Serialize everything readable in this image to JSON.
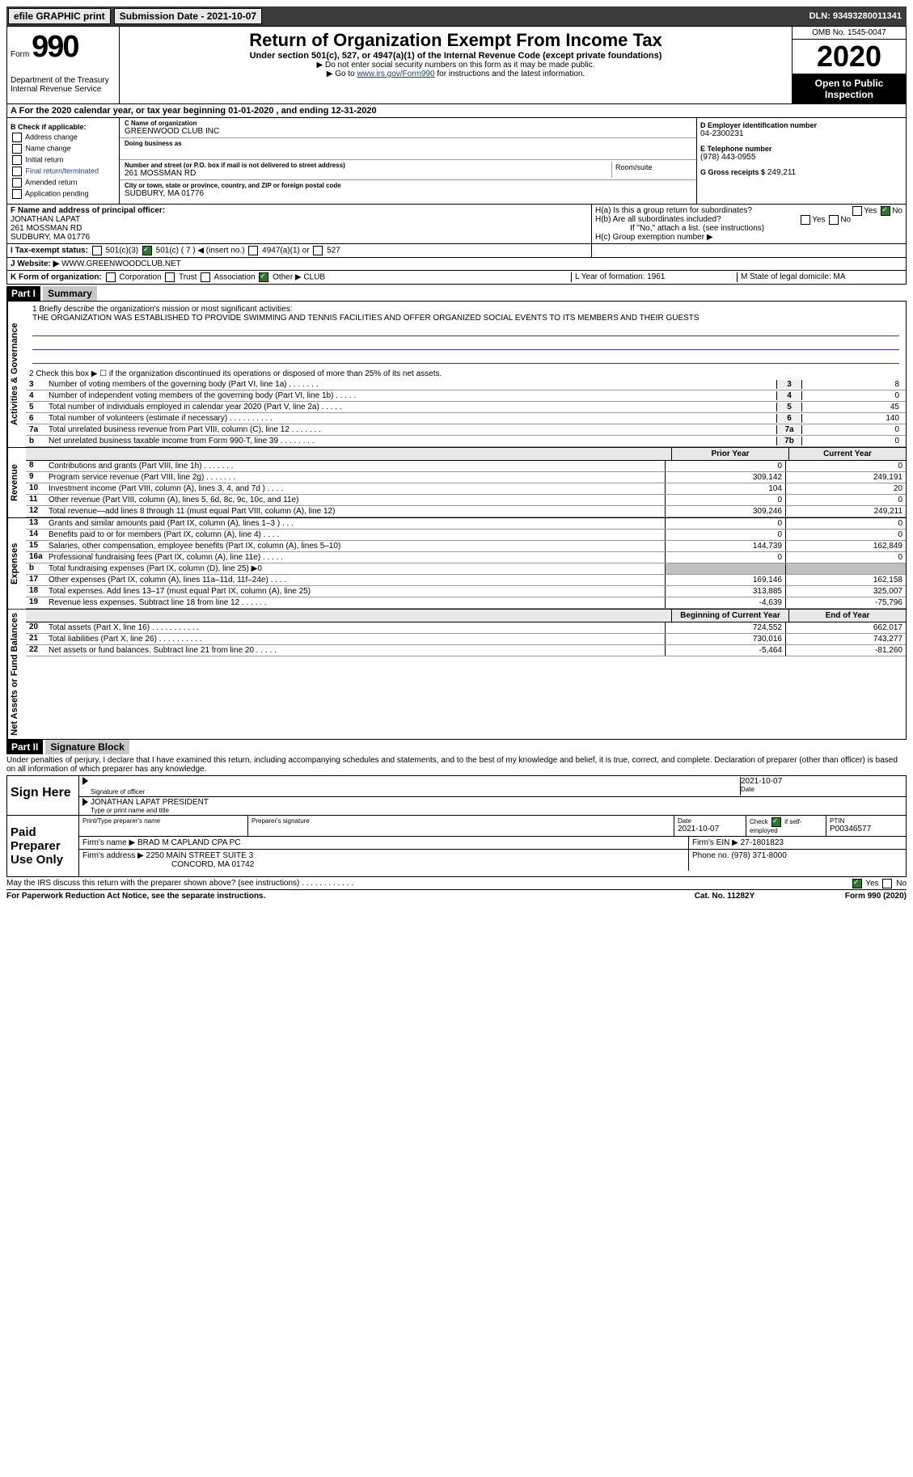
{
  "topbar": {
    "efile_label": "efile GRAPHIC print",
    "submission_label": "Submission Date - 2021-10-07",
    "dln": "DLN: 93493280011341"
  },
  "header": {
    "form_word": "Form",
    "form_number": "990",
    "dept1": "Department of the Treasury",
    "dept2": "Internal Revenue Service",
    "title": "Return of Organization Exempt From Income Tax",
    "sub": "Under section 501(c), 527, or 4947(a)(1) of the Internal Revenue Code (except private foundations)",
    "instr1": "▶ Do not enter social security numbers on this form as it may be made public.",
    "instr2_pre": "▶ Go to ",
    "instr2_link": "www.irs.gov/Form990",
    "instr2_post": " for instructions and the latest information.",
    "omb": "OMB No. 1545-0047",
    "year": "2020",
    "open_public": "Open to Public Inspection"
  },
  "period": "For the 2020 calendar year, or tax year beginning 01-01-2020    , and ending 12-31-2020",
  "section_b": {
    "title": "B Check if applicable:",
    "opt1": "Address change",
    "opt2": "Name change",
    "opt3": "Initial return",
    "opt4": "Final return/terminated",
    "opt5": "Amended return",
    "opt6": "Application pending"
  },
  "section_c": {
    "name_label": "C Name of organization",
    "name": "GREENWOOD CLUB INC",
    "dba_label": "Doing business as",
    "addr_label": "Number and street (or P.O. box if mail is not delivered to street address)",
    "room_label": "Room/suite",
    "addr": "261 MOSSMAN RD",
    "city_label": "City or town, state or province, country, and ZIP or foreign postal code",
    "city": "SUDBURY, MA  01776"
  },
  "section_d": {
    "ein_label": "D Employer identification number",
    "ein": "04-2300231",
    "tel_label": "E Telephone number",
    "tel": "(978) 443-0955",
    "gross_label": "G Gross receipts $",
    "gross": "249,211"
  },
  "section_f": {
    "label": "F  Name and address of principal officer:",
    "name": "JONATHAN LAPAT",
    "addr1": "261 MOSSMAN RD",
    "addr2": "SUDBURY, MA  01776"
  },
  "section_h": {
    "ha_label": "H(a)  Is this a group return for subordinates?",
    "hb_label": "H(b)  Are all subordinates included?",
    "hb_note": "If \"No,\" attach a list. (see instructions)",
    "hc_label": "H(c)  Group exemption number ▶"
  },
  "section_i": {
    "label": "I   Tax-exempt status:",
    "opt1": "501(c)(3)",
    "opt2": "501(c) ( 7 ) ◀ (insert no.)",
    "opt3": "4947(a)(1) or",
    "opt4": "527"
  },
  "section_j": {
    "label": "J   Website: ▶",
    "value": "WWW.GREENWOODCLUB.NET"
  },
  "section_k": {
    "label": "K Form of organization:",
    "opt1": "Corporation",
    "opt2": "Trust",
    "opt3": "Association",
    "opt4": "Other ▶",
    "other_val": "CLUB",
    "l_label": "L Year of formation: 1961",
    "m_label": "M State of legal domicile: MA"
  },
  "part1": {
    "header": "Part I",
    "title": "Summary",
    "tab_gov": "Activities & Governance",
    "tab_rev": "Revenue",
    "tab_exp": "Expenses",
    "tab_net": "Net Assets or Fund Balances",
    "line1_label": "1   Briefly describe the organization's mission or most significant activities:",
    "mission": "THE ORGANIZATION WAS ESTABLISHED TO PROVIDE SWIMMING AND TENNIS FACILITIES AND OFFER ORGANIZED SOCIAL EVENTS TO ITS MEMBERS AND THEIR GUESTS",
    "line2": "2    Check this box ▶ ☐  if the organization discontinued its operations or disposed of more than 25% of its net assets.",
    "lines_gov": [
      {
        "n": "3",
        "desc": "Number of voting members of the governing body (Part VI, line 1a)  .    .    .    .    .    .    .",
        "box": "3",
        "val": "8"
      },
      {
        "n": "4",
        "desc": "Number of independent voting members of the governing body (Part VI, line 1b)  .    .    .    .    .",
        "box": "4",
        "val": "0"
      },
      {
        "n": "5",
        "desc": "Total number of individuals employed in calendar year 2020 (Part V, line 2a)  .    .    .    .    .",
        "box": "5",
        "val": "45"
      },
      {
        "n": "6",
        "desc": "Total number of volunteers (estimate if necessary)  .    .    .    .    .    .    .    .    .    .",
        "box": "6",
        "val": "140"
      },
      {
        "n": "7a",
        "desc": "Total unrelated business revenue from Part VIII, column (C), line 12  .    .    .    .    .    .    .",
        "box": "7a",
        "val": "0"
      },
      {
        "n": "b",
        "desc": "Net unrelated business taxable income from Form 990-T, line 39  .    .    .    .    .    .    .    .",
        "box": "7b",
        "val": "0"
      }
    ],
    "col_header_prior": "Prior Year",
    "col_header_current": "Current Year",
    "lines_rev": [
      {
        "n": "8",
        "desc": "Contributions and grants (Part VIII, line 1h)   .    .    .    .    .    .    .",
        "c1": "0",
        "c2": "0"
      },
      {
        "n": "9",
        "desc": "Program service revenue (Part VIII, line 2g)   .    .    .    .    .    .    .",
        "c1": "309,142",
        "c2": "249,191"
      },
      {
        "n": "10",
        "desc": "Investment income (Part VIII, column (A), lines 3, 4, and 7d )   .    .    .    .",
        "c1": "104",
        "c2": "20"
      },
      {
        "n": "11",
        "desc": "Other revenue (Part VIII, column (A), lines 5, 6d, 8c, 9c, 10c, and 11e)",
        "c1": "0",
        "c2": "0"
      },
      {
        "n": "12",
        "desc": "Total revenue—add lines 8 through 11 (must equal Part VIII, column (A), line 12)",
        "c1": "309,246",
        "c2": "249,211"
      }
    ],
    "lines_exp": [
      {
        "n": "13",
        "desc": "Grants and similar amounts paid (Part IX, column (A), lines 1–3 )   .    .    .",
        "c1": "0",
        "c2": "0"
      },
      {
        "n": "14",
        "desc": "Benefits paid to or for members (Part IX, column (A), line 4)   .    .    .    .",
        "c1": "0",
        "c2": "0"
      },
      {
        "n": "15",
        "desc": "Salaries, other compensation, employee benefits (Part IX, column (A), lines 5–10)",
        "c1": "144,739",
        "c2": "162,849"
      },
      {
        "n": "16a",
        "desc": "Professional fundraising fees (Part IX, column (A), line 11e)   .    .    .    .    .",
        "c1": "0",
        "c2": "0"
      },
      {
        "n": "b",
        "desc": "Total fundraising expenses (Part IX, column (D), line 25) ▶0",
        "c1": "",
        "c2": "",
        "shaded": true
      },
      {
        "n": "17",
        "desc": "Other expenses (Part IX, column (A), lines 11a–11d, 11f–24e)   .    .    .    .",
        "c1": "169,146",
        "c2": "162,158"
      },
      {
        "n": "18",
        "desc": "Total expenses. Add lines 13–17 (must equal Part IX, column (A), line 25)",
        "c1": "313,885",
        "c2": "325,007"
      },
      {
        "n": "19",
        "desc": "Revenue less expenses. Subtract line 18 from line 12  .    .    .    .    .    .",
        "c1": "-4,639",
        "c2": "-75,796"
      }
    ],
    "col_header_begin": "Beginning of Current Year",
    "col_header_end": "End of Year",
    "lines_net": [
      {
        "n": "20",
        "desc": "Total assets (Part X, line 16)  .    .    .    .    .    .    .    .    .    .    .",
        "c1": "724,552",
        "c2": "662,017"
      },
      {
        "n": "21",
        "desc": "Total liabilities (Part X, line 26)  .    .    .    .    .    .    .    .    .    .",
        "c1": "730,016",
        "c2": "743,277"
      },
      {
        "n": "22",
        "desc": "Net assets or fund balances. Subtract line 21 from line 20  .    .    .    .    .",
        "c1": "-5,464",
        "c2": "-81,260"
      }
    ]
  },
  "part2": {
    "header": "Part II",
    "title": "Signature Block",
    "declaration": "Under penalties of perjury, I declare that I have examined this return, including accompanying schedules and statements, and to the best of my knowledge and belief, it is true, correct, and complete. Declaration of preparer (other than officer) is based on all information of which preparer has any knowledge.",
    "sign_here": "Sign Here",
    "sig_date": "2021-10-07",
    "sig_officer_label": "Signature of officer",
    "date_label": "Date",
    "officer_name": "JONATHAN LAPAT PRESIDENT",
    "officer_name_label": "Type or print name and title",
    "paid_label": "Paid Preparer Use Only",
    "prep_name_label": "Print/Type preparer's name",
    "prep_sig_label": "Preparer's signature",
    "prep_date_label": "Date",
    "prep_date": "2021-10-07",
    "prep_check_label": "Check ☑ if self-employed",
    "ptin_label": "PTIN",
    "ptin": "P00346577",
    "firm_name_label": "Firm's name    ▶",
    "firm_name": "BRAD M CAPLAND CPA PC",
    "firm_ein_label": "Firm's EIN ▶",
    "firm_ein": "27-1801823",
    "firm_addr_label": "Firm's address ▶",
    "firm_addr": "2250 MAIN STREET SUITE 3",
    "firm_city": "CONCORD, MA  01742",
    "firm_phone_label": "Phone no.",
    "firm_phone": "(978) 371-8000",
    "discuss": "May the IRS discuss this return with the preparer shown above? (see instructions)   .    .    .    .    .    .    .    .    .    .    .    ."
  },
  "footer": {
    "l": "For Paperwork Reduction Act Notice, see the separate instructions.",
    "m": "Cat. No. 11282Y",
    "r": "Form 990 (2020)"
  }
}
